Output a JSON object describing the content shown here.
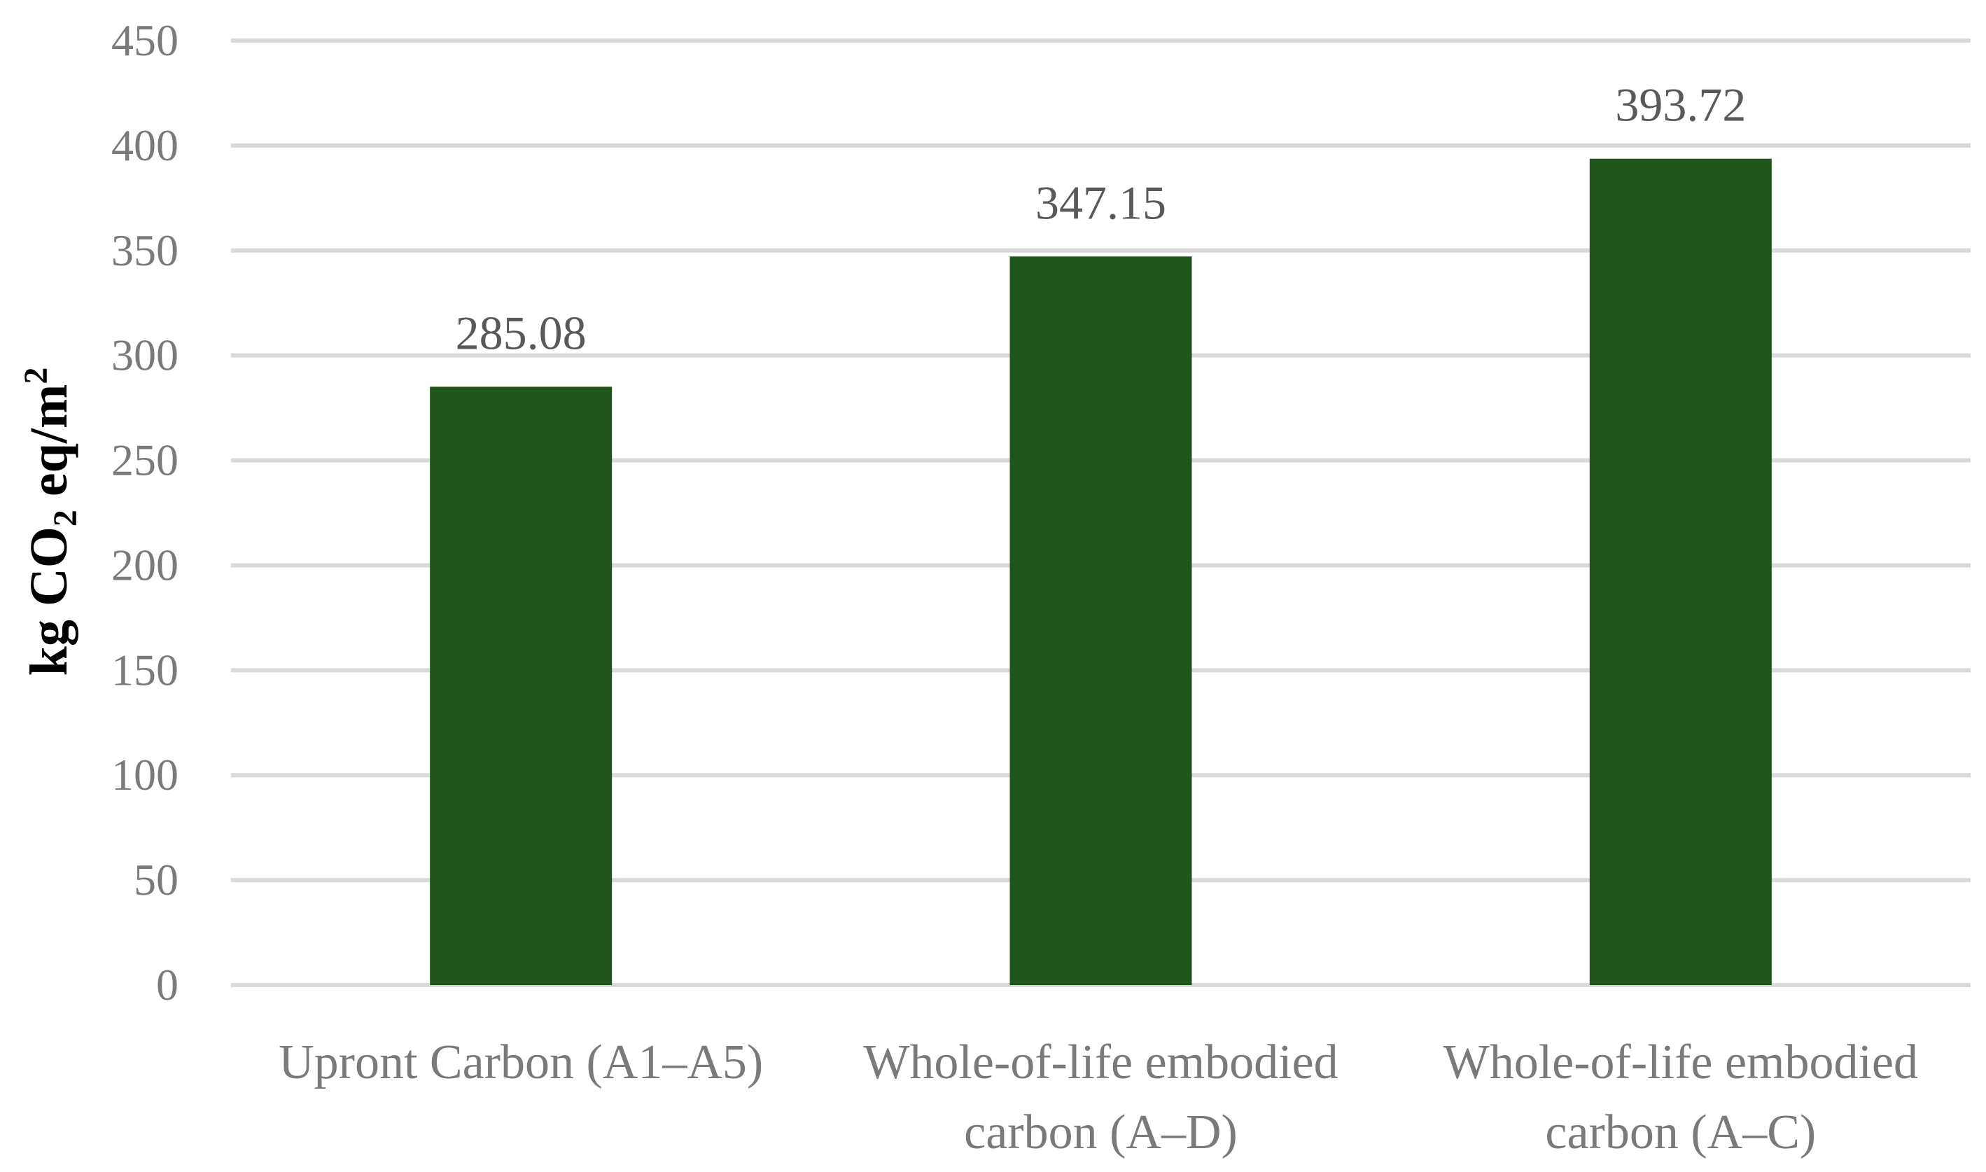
{
  "chart_data": {
    "type": "bar",
    "title": "",
    "categories": [
      [
        "Upront Carbon (A1–A5)"
      ],
      [
        "Whole-of-life embodied",
        "carbon (A–D)"
      ],
      [
        "Whole-of-life embodied",
        "carbon (A–C)"
      ]
    ],
    "values": [
      285.08,
      347.15,
      393.72
    ],
    "data_labels": [
      "285.08",
      "347.15",
      "393.72"
    ],
    "ylabel": {
      "main": "kg CO",
      "subscript": "2",
      "middle": " eq/m",
      "superscript": "2"
    },
    "ylim": [
      0,
      450
    ],
    "yticks": [
      0,
      50,
      100,
      150,
      200,
      250,
      300,
      350,
      400,
      450
    ],
    "grid": true,
    "legend": "none",
    "colors": {
      "bar": "#20561c",
      "grid": "#d9d9d9",
      "tick_text": "#7a7a7a",
      "data_label_text": "#595959"
    }
  }
}
